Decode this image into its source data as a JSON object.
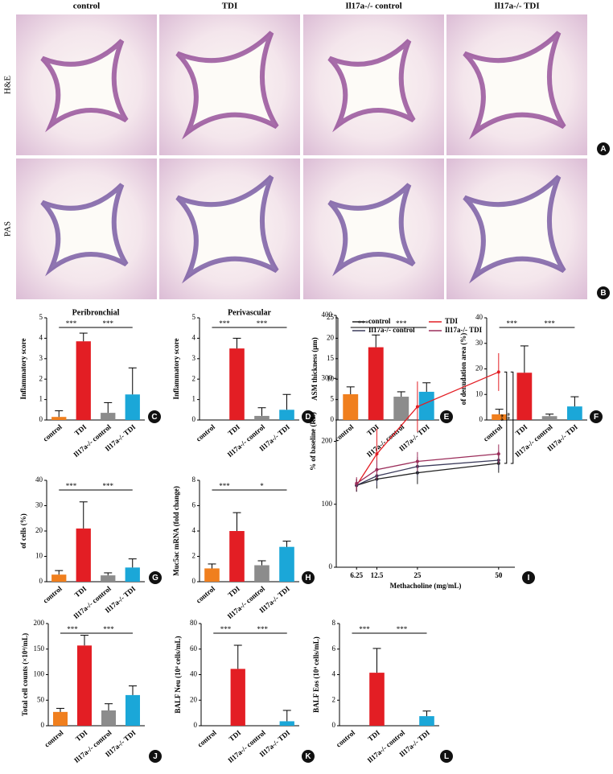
{
  "images": {
    "columns": [
      "control",
      "TDI",
      "Il17a-/- control",
      "Il17a-/- TDI"
    ],
    "rows": [
      "H&E",
      "PAS"
    ],
    "panels": [
      "A",
      "B"
    ]
  },
  "chart_data": [
    {
      "type": "bar",
      "panel": "C",
      "title": "Peribronchial",
      "ylabel": "Inflammatory score",
      "categories": [
        "control",
        "TDI",
        "Il17a-/- control",
        "Il17a-/- TDI"
      ],
      "values": [
        0.15,
        3.85,
        0.35,
        1.25
      ],
      "errors": [
        0.3,
        0.4,
        0.5,
        1.3
      ],
      "colors": [
        "#f07f1e",
        "#e31e24",
        "#8c8c8c",
        "#1ba7d8"
      ],
      "ylim": [
        0,
        5
      ],
      "yticks": [
        0,
        1,
        2,
        3,
        4,
        5
      ],
      "annotations": [
        {
          "text": "***",
          "from": 0,
          "to": 1
        },
        {
          "text": "***",
          "from": 1,
          "to": 3
        }
      ]
    },
    {
      "type": "bar",
      "panel": "D",
      "title": "Perivascular",
      "ylabel": "Inflammatory score",
      "categories": [
        "control",
        "TDI",
        "Il17a-/- control",
        "Il17a-/- TDI"
      ],
      "values": [
        0,
        3.5,
        0.2,
        0.5
      ],
      "errors": [
        0,
        0.5,
        0.4,
        0.75
      ],
      "colors": [
        "#f07f1e",
        "#e31e24",
        "#8c8c8c",
        "#1ba7d8"
      ],
      "ylim": [
        0,
        5
      ],
      "yticks": [
        0,
        1,
        2,
        3,
        4,
        5
      ],
      "annotations": [
        {
          "text": "***",
          "from": 0,
          "to": 1
        },
        {
          "text": "***",
          "from": 1,
          "to": 3
        }
      ]
    },
    {
      "type": "bar",
      "panel": "E",
      "ylabel": "ASM thickness (μm)",
      "categories": [
        "control",
        "TDI",
        "Il17a-/- control",
        "Il17a-/- TDI"
      ],
      "values": [
        6.3,
        17.8,
        5.7,
        6.9
      ],
      "errors": [
        1.8,
        3,
        1.2,
        2.2
      ],
      "colors": [
        "#f07f1e",
        "#e31e24",
        "#8c8c8c",
        "#1ba7d8"
      ],
      "ylim": [
        0,
        25
      ],
      "yticks": [
        0,
        5,
        10,
        15,
        20,
        25
      ],
      "annotations": [
        {
          "text": "***",
          "from": 0,
          "to": 1
        },
        {
          "text": "***",
          "from": 1,
          "to": 3
        }
      ]
    },
    {
      "type": "bar",
      "panel": "F",
      "ylabel": "of denudation area (%)",
      "categories": [
        "control",
        "TDI",
        "Il17a-/- control",
        "Il17a-/- TDI"
      ],
      "values": [
        2.2,
        18.5,
        1.5,
        5.3
      ],
      "errors": [
        2,
        10.5,
        0.8,
        3.8
      ],
      "colors": [
        "#f07f1e",
        "#e31e24",
        "#8c8c8c",
        "#1ba7d8"
      ],
      "ylim": [
        0,
        40
      ],
      "yticks": [
        0,
        10,
        20,
        30,
        40
      ],
      "annotations": [
        {
          "text": "***",
          "from": 0,
          "to": 1
        },
        {
          "text": "***",
          "from": 1,
          "to": 3
        }
      ]
    },
    {
      "type": "bar",
      "panel": "G",
      "ylabel": "of cells (%)",
      "categories": [
        "control",
        "TDI",
        "Il17a-/- control",
        "Il17a-/- TDI"
      ],
      "values": [
        2.8,
        21,
        2.5,
        5.6
      ],
      "errors": [
        1.6,
        10.5,
        1,
        3.4
      ],
      "colors": [
        "#f07f1e",
        "#e31e24",
        "#8c8c8c",
        "#1ba7d8"
      ],
      "ylim": [
        0,
        40
      ],
      "yticks": [
        0,
        10,
        20,
        30,
        40
      ],
      "annotations": [
        {
          "text": "***",
          "from": 0,
          "to": 1
        },
        {
          "text": "***",
          "from": 1,
          "to": 3
        }
      ]
    },
    {
      "type": "bar",
      "panel": "H",
      "ylabel": "Muc5ac mRNA (fold change)",
      "categories": [
        "control",
        "TDI",
        "Il17a-/- control",
        "Il17a-/- TDI"
      ],
      "values": [
        1.05,
        4,
        1.3,
        2.75
      ],
      "errors": [
        0.35,
        1.45,
        0.35,
        0.45
      ],
      "colors": [
        "#f07f1e",
        "#e31e24",
        "#8c8c8c",
        "#1ba7d8"
      ],
      "ylim": [
        0,
        8
      ],
      "yticks": [
        0,
        2,
        4,
        6,
        8
      ],
      "annotations": [
        {
          "text": "***",
          "from": 0,
          "to": 1
        },
        {
          "text": "*",
          "from": 1,
          "to": 3
        }
      ]
    },
    {
      "type": "line",
      "panel": "I",
      "ylabel": "% of baseline (RL)",
      "xlabel": "Methacholine (mg/mL)",
      "x": [
        6.25,
        12.5,
        25,
        50
      ],
      "xlim": [
        0,
        55
      ],
      "xticks": [
        6.25,
        12.5,
        25,
        50
      ],
      "ylim": [
        0,
        400
      ],
      "yticks": [
        0,
        100,
        200,
        300,
        400
      ],
      "series": [
        {
          "name": "control",
          "color": "#222222",
          "values": [
            130,
            140,
            150,
            165
          ],
          "errors": [
            10,
            15,
            18,
            15
          ]
        },
        {
          "name": "TDI",
          "color": "#e31e24",
          "values": [
            130,
            180,
            255,
            310
          ],
          "errors": [
            10,
            40,
            40,
            30
          ]
        },
        {
          "name": "Il17a-/- control",
          "color": "#3a3a5a",
          "values": [
            130,
            145,
            160,
            170
          ],
          "errors": [
            10,
            15,
            15,
            15
          ]
        },
        {
          "name": "Il17a-/- TDI",
          "color": "#9b2d5a",
          "values": [
            133,
            155,
            168,
            180
          ],
          "errors": [
            10,
            15,
            15,
            15
          ]
        }
      ],
      "annotations": [
        "**",
        "**"
      ]
    },
    {
      "type": "bar",
      "panel": "J",
      "ylabel": "Total cell counts (×10⁴/mL)",
      "categories": [
        "control",
        "TDI",
        "Il17a-/- control",
        "Il17a-/- TDI"
      ],
      "values": [
        27,
        157,
        30,
        60
      ],
      "errors": [
        7,
        20,
        13,
        18
      ],
      "colors": [
        "#f07f1e",
        "#e31e24",
        "#8c8c8c",
        "#1ba7d8"
      ],
      "ylim": [
        0,
        200
      ],
      "yticks": [
        0,
        50,
        100,
        150,
        200
      ],
      "annotations": [
        {
          "text": "***",
          "from": 0,
          "to": 1
        },
        {
          "text": "***",
          "from": 1,
          "to": 3
        }
      ]
    },
    {
      "type": "bar",
      "panel": "K",
      "ylabel": "BALF Neu (10⁴ cells/mL)",
      "categories": [
        "control",
        "TDI",
        "Il17a-/- control",
        "Il17a-/- TDI"
      ],
      "values": [
        0,
        44.5,
        0,
        3.5
      ],
      "errors": [
        0,
        18.5,
        0,
        8.5
      ],
      "colors": [
        "#f07f1e",
        "#e31e24",
        "#8c8c8c",
        "#1ba7d8"
      ],
      "ylim": [
        0,
        80
      ],
      "yticks": [
        0,
        20,
        40,
        60,
        80
      ],
      "annotations": [
        {
          "text": "***",
          "from": 0,
          "to": 1
        },
        {
          "text": "***",
          "from": 1,
          "to": 3
        }
      ]
    },
    {
      "type": "bar",
      "panel": "L",
      "ylabel": "BALF Eos (10⁴ cells/mL)",
      "categories": [
        "control",
        "TDI",
        "Il17a-/- control",
        "Il17a-/- TDI"
      ],
      "values": [
        0,
        4.15,
        0,
        0.75
      ],
      "errors": [
        0,
        1.9,
        0,
        0.4
      ],
      "colors": [
        "#f07f1e",
        "#e31e24",
        "#8c8c8c",
        "#1ba7d8"
      ],
      "ylim": [
        0,
        8
      ],
      "yticks": [
        0,
        2,
        4,
        6,
        8
      ],
      "annotations": [
        {
          "text": "***",
          "from": 0,
          "to": 1
        },
        {
          "text": "***",
          "from": 1,
          "to": 3
        }
      ]
    }
  ]
}
